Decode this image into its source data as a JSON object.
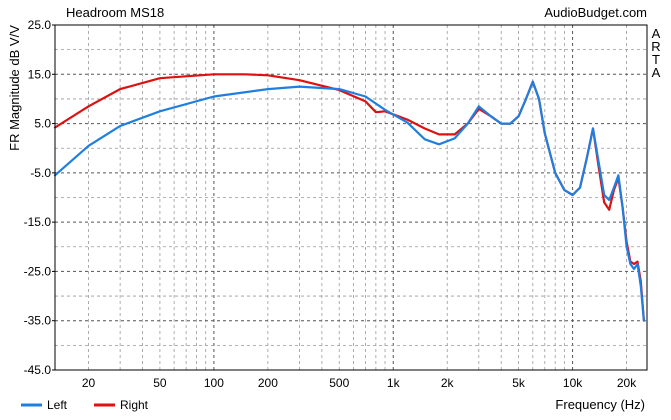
{
  "chart_data": {
    "type": "line",
    "title": "Headroom MS18",
    "brand": "AudioBudget.com",
    "side_label": [
      "A",
      "R",
      "T",
      "A"
    ],
    "ylabel": "FR Magnitude dB V/V",
    "xlabel": "Frequency (Hz)",
    "x_scale": "log",
    "xlim": [
      13,
      26000
    ],
    "ylim": [
      -45,
      25
    ],
    "y_ticks": [
      {
        "value": 25,
        "label": "25.0"
      },
      {
        "value": 15,
        "label": "15.0"
      },
      {
        "value": 5,
        "label": "5.0"
      },
      {
        "value": -5,
        "label": "-5.0"
      },
      {
        "value": -15,
        "label": "-15.0"
      },
      {
        "value": -25,
        "label": "-25.0"
      },
      {
        "value": -35,
        "label": "-35.0"
      },
      {
        "value": -45,
        "label": "-45.0"
      }
    ],
    "x_ticks": [
      {
        "value": 20,
        "label": "20"
      },
      {
        "value": 50,
        "label": "50"
      },
      {
        "value": 100,
        "label": "100"
      },
      {
        "value": 200,
        "label": "200"
      },
      {
        "value": 500,
        "label": "500"
      },
      {
        "value": 1000,
        "label": "1k"
      },
      {
        "value": 2000,
        "label": "2k"
      },
      {
        "value": 5000,
        "label": "5k"
      },
      {
        "value": 10000,
        "label": "10k"
      },
      {
        "value": 20000,
        "label": "20k"
      }
    ],
    "grid": true,
    "legend_position": "bottom-left",
    "series": [
      {
        "name": "Left",
        "color": "#1f7fe0",
        "x": [
          13,
          20,
          30,
          50,
          100,
          200,
          300,
          500,
          700,
          900,
          1200,
          1500,
          1800,
          2200,
          2600,
          3000,
          3500,
          4000,
          4500,
          5000,
          5500,
          6000,
          6500,
          7000,
          8000,
          9000,
          10000,
          11000,
          12000,
          13000,
          14000,
          15000,
          16000,
          17000,
          18000,
          19000,
          20000,
          21000,
          22000,
          23000,
          24000,
          25000
        ],
        "y": [
          -5.5,
          0.5,
          4.5,
          7.5,
          10.5,
          12.0,
          12.5,
          12.0,
          10.5,
          7.8,
          5.2,
          1.8,
          0.8,
          2.0,
          5.0,
          8.5,
          6.5,
          5.0,
          5.0,
          6.5,
          10.0,
          13.5,
          10.0,
          3.0,
          -5.0,
          -8.5,
          -9.5,
          -8.0,
          -2.0,
          4.0,
          -3.0,
          -9.5,
          -10.5,
          -8.0,
          -5.5,
          -12.0,
          -20.0,
          -23.5,
          -24.5,
          -23.5,
          -28.0,
          -35.0
        ]
      },
      {
        "name": "Right",
        "color": "#dd1111",
        "x": [
          13,
          20,
          30,
          50,
          100,
          150,
          200,
          300,
          500,
          700,
          800,
          900,
          1200,
          1500,
          1800,
          2200,
          2600,
          3000,
          3500,
          4000,
          4500,
          5000,
          5500,
          6000,
          6500,
          7000,
          8000,
          9000,
          10000,
          11000,
          12000,
          13000,
          14000,
          15000,
          16000,
          17000,
          18000,
          19000,
          20000,
          21000,
          22000,
          23000,
          24000,
          25000
        ],
        "y": [
          4.2,
          8.5,
          12.0,
          14.2,
          15.0,
          15.0,
          14.8,
          13.8,
          11.8,
          9.5,
          7.3,
          7.5,
          5.8,
          4.0,
          2.8,
          2.8,
          5.0,
          8.0,
          6.5,
          5.0,
          5.0,
          6.5,
          10.0,
          13.5,
          10.0,
          3.0,
          -5.0,
          -8.5,
          -9.5,
          -8.0,
          -2.0,
          4.0,
          -4.0,
          -11.0,
          -12.5,
          -8.5,
          -6.0,
          -12.0,
          -19.0,
          -23.0,
          -23.5,
          -23.0,
          -27.0,
          -35.0
        ]
      }
    ]
  }
}
